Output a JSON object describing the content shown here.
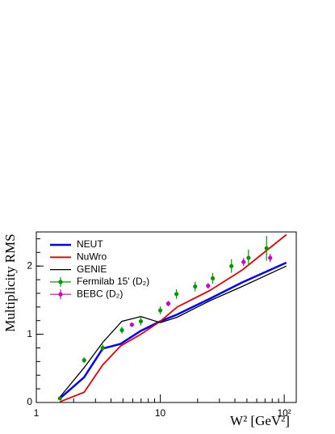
{
  "chart_data": {
    "type": "line",
    "xlabel": "W² [GeV²]",
    "ylabel": "Multiplicity RMS",
    "xscale": "log",
    "xlim": [
      1,
      125
    ],
    "ylim": [
      0,
      2.5
    ],
    "xticks": [
      1,
      10,
      {
        "value": 100,
        "label": "10²"
      }
    ],
    "yticks": [
      0,
      1,
      2
    ],
    "legend": "upper left",
    "series": [
      {
        "name": "NEUT",
        "color": "#0000ff",
        "style": "line",
        "width": 2.5,
        "x": [
          1.55,
          2.43,
          3.43,
          4.79,
          6.97,
          10,
          13.7,
          25,
          45.7,
          104
        ],
        "values": [
          0.06,
          0.37,
          0.79,
          0.86,
          1.05,
          1.19,
          1.29,
          1.52,
          1.76,
          2.05
        ]
      },
      {
        "name": "NuWro",
        "color": "#ee0000",
        "style": "line",
        "width": 1.8,
        "x": [
          1.55,
          2.43,
          3.43,
          4.79,
          6.97,
          10,
          13.7,
          25,
          45.7,
          104
        ],
        "values": [
          0.01,
          0.15,
          0.55,
          0.83,
          1.0,
          1.19,
          1.4,
          1.64,
          1.94,
          2.46
        ]
      },
      {
        "name": "GENIE",
        "color": "#000000",
        "style": "line",
        "width": 1.3,
        "x": [
          1.55,
          2.43,
          3.43,
          4.9,
          6.97,
          10,
          13.7,
          25,
          45.7,
          104
        ],
        "values": [
          0.08,
          0.51,
          0.88,
          1.19,
          1.26,
          1.17,
          1.25,
          1.49,
          1.7,
          2.0
        ]
      },
      {
        "name": "Fermilab 15' (D₂)",
        "color": "#009900",
        "style": "points",
        "x": [
          1.55,
          2.43,
          3.43,
          4.9,
          6.97,
          10,
          13.5,
          19.1,
          26.5,
          37.5,
          51.5,
          72
        ],
        "values": [
          0.06,
          0.62,
          0.8,
          1.06,
          1.19,
          1.35,
          1.59,
          1.7,
          1.82,
          2.0,
          2.12,
          2.26
        ],
        "errors": [
          0.02,
          0.04,
          0.05,
          0.05,
          0.06,
          0.06,
          0.07,
          0.07,
          0.08,
          0.1,
          0.12,
          0.18
        ]
      },
      {
        "name": "BEBC (D₂)",
        "color": "#cc00cc",
        "style": "points",
        "x": [
          5.9,
          11.6,
          24.3,
          47,
          77
        ],
        "values": [
          1.14,
          1.45,
          1.71,
          2.06,
          2.12
        ],
        "errors": [
          0.03,
          0.04,
          0.04,
          0.06,
          0.06
        ]
      }
    ]
  }
}
